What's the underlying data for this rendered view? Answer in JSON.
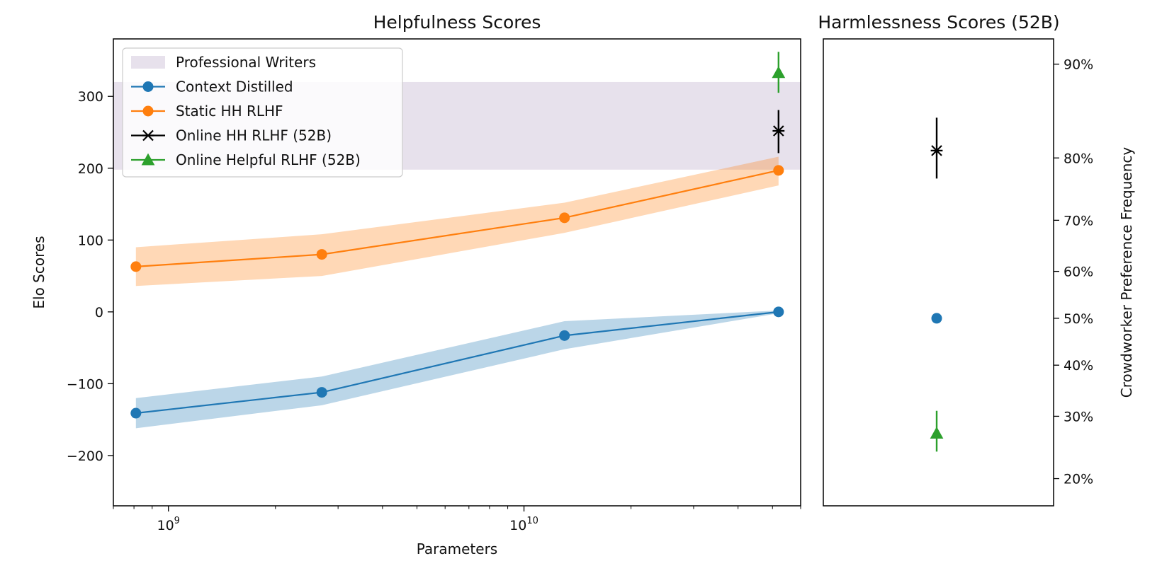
{
  "chart_data": [
    {
      "type": "line",
      "title": "Helpfulness Scores",
      "xlabel": "Parameters",
      "ylabel": "Elo Scores",
      "xscale": "log",
      "xlim": [
        700000000,
        60000000000
      ],
      "ylim": [
        -270,
        380
      ],
      "xticks": [
        {
          "value": 1000000000,
          "base": "10",
          "exp": "9"
        },
        {
          "value": 10000000000,
          "base": "10",
          "exp": "10"
        }
      ],
      "yticks": [
        {
          "value": -200,
          "label": "−200"
        },
        {
          "value": -100,
          "label": "−100"
        },
        {
          "value": 0,
          "label": "0"
        },
        {
          "value": 100,
          "label": "100"
        },
        {
          "value": 200,
          "label": "200"
        },
        {
          "value": 300,
          "label": "300"
        }
      ],
      "grid": false,
      "legend_position": "top-left",
      "band": {
        "name": "Professional Writers",
        "y_range": [
          198,
          320
        ],
        "color": "#e7e1ec"
      },
      "series": [
        {
          "name": "Context Distilled",
          "color": "#1f77b4",
          "marker": "circle",
          "x": [
            810000000,
            2700000000,
            13000000000,
            52000000000
          ],
          "y": [
            -141,
            -112,
            -33,
            0
          ],
          "lower": [
            -162,
            -130,
            -52,
            -2
          ],
          "upper": [
            -120,
            -90,
            -13,
            2
          ]
        },
        {
          "name": "Static HH RLHF",
          "color": "#ff7f0e",
          "marker": "circle",
          "x": [
            810000000,
            2700000000,
            13000000000,
            52000000000
          ],
          "y": [
            63,
            80,
            131,
            197
          ],
          "lower": [
            36,
            50,
            110,
            176
          ],
          "upper": [
            90,
            108,
            152,
            216
          ]
        },
        {
          "name": "Online HH RLHF (52B)",
          "color": "#000000",
          "marker": "x",
          "x": [
            52000000000
          ],
          "y": [
            252
          ],
          "err_low": [
            221
          ],
          "err_high": [
            281
          ]
        },
        {
          "name": "Online Helpful RLHF (52B)",
          "color": "#2ca02c",
          "marker": "triangle",
          "x": [
            52000000000
          ],
          "y": [
            333
          ],
          "err_low": [
            305
          ],
          "err_high": [
            362
          ]
        }
      ]
    },
    {
      "type": "scatter",
      "title": "Harmlessness Scores (52B)",
      "ylabel": "Crowdworker Preference Frequency",
      "ylabel_side": "right",
      "yticks": [
        "20%",
        "30%",
        "40%",
        "50%",
        "60%",
        "70%",
        "80%",
        "90%"
      ],
      "points": [
        {
          "series": "Online HH RLHF (52B)",
          "color": "#000000",
          "marker": "x",
          "y": 81,
          "err_low": 77,
          "err_high": 85
        },
        {
          "series": "Context Distilled",
          "color": "#1f77b4",
          "marker": "circle",
          "y": 50
        },
        {
          "series": "Online Helpful RLHF (52B)",
          "color": "#2ca02c",
          "marker": "triangle",
          "y": 27,
          "err_low": 24,
          "err_high": 31
        }
      ]
    }
  ]
}
